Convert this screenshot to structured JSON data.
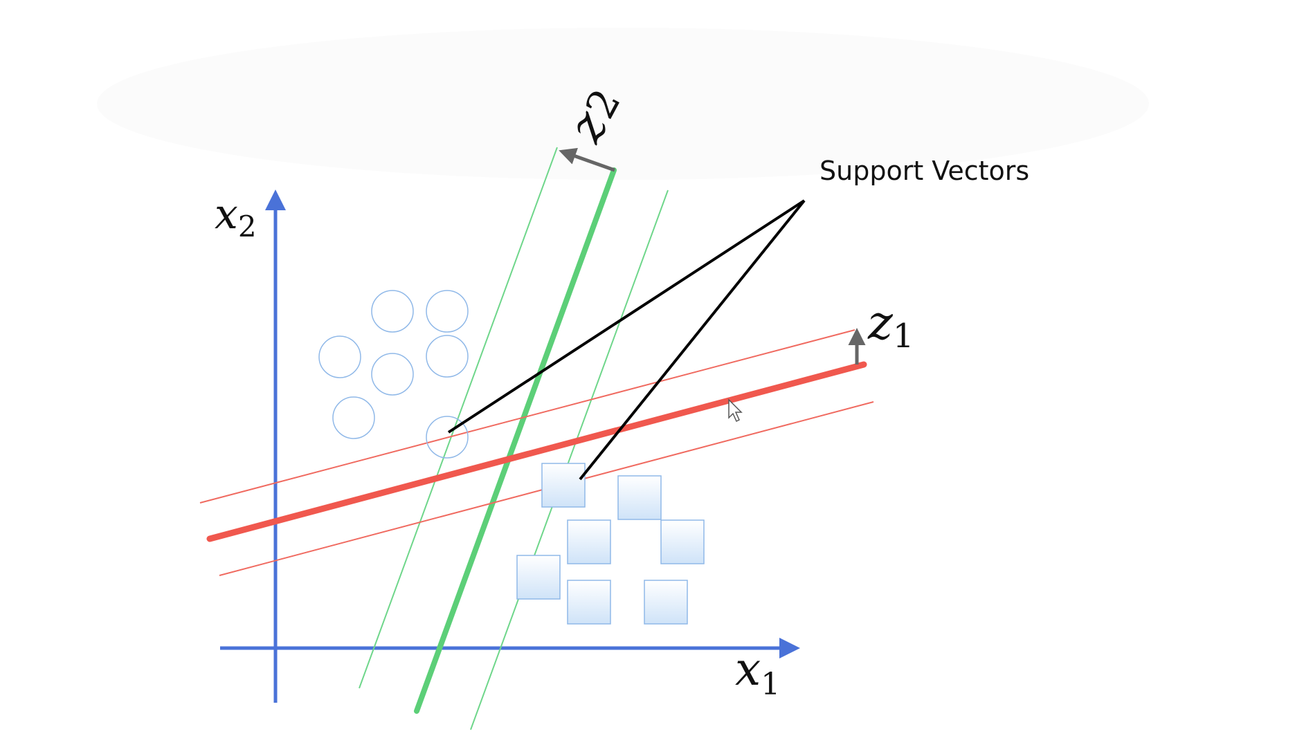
{
  "diagram": {
    "annotation": "Support Vectors",
    "axes": {
      "x": {
        "symbol": "x",
        "subscript": "1"
      },
      "y": {
        "symbol": "x",
        "subscript": "2"
      }
    },
    "projections": {
      "z1": {
        "symbol": "z",
        "subscript": "1"
      },
      "z2": {
        "symbol": "z",
        "subscript": "2"
      }
    },
    "classes": [
      {
        "name": "circle-class",
        "shape": "circle",
        "count": 7
      },
      {
        "name": "square-class",
        "shape": "square",
        "count": 7
      }
    ],
    "colors": {
      "axis": "#4a72d8",
      "green_boundary": "#5ccf78",
      "green_margin": "#6ed68a",
      "red_boundary": "#f0584e",
      "red_margin": "#f06a60",
      "point_stroke": "#8fb8e8",
      "point_fill": "#dbeafb",
      "arrow": "#666666",
      "callout": "#000000"
    }
  }
}
